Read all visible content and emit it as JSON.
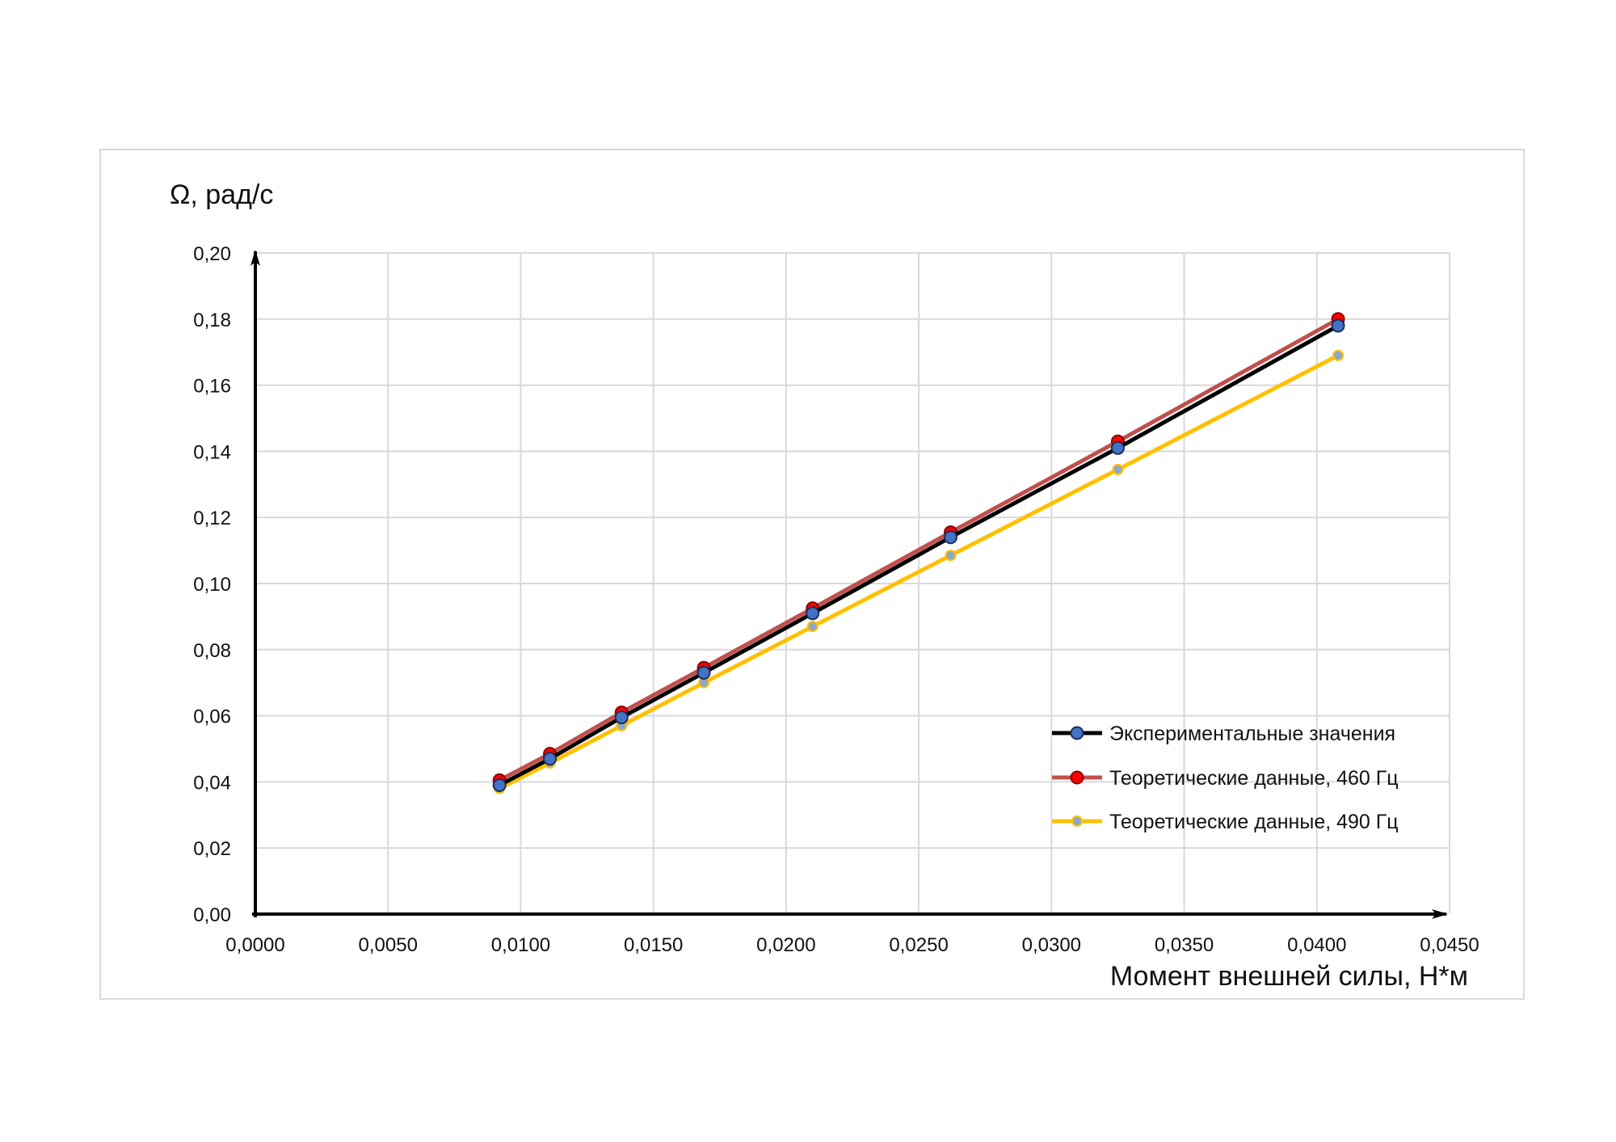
{
  "chart_data": {
    "type": "line",
    "title": "",
    "xlabel": "Момент внешней силы, Н*м",
    "ylabel": "Ω, рад/с",
    "xlim": [
      0,
      0.045
    ],
    "ylim": [
      0,
      0.2
    ],
    "x_ticks": [
      "0,0000",
      "0,0050",
      "0,0100",
      "0,0150",
      "0,0200",
      "0,0250",
      "0,0300",
      "0,0350",
      "0,0400",
      "0,0450"
    ],
    "y_ticks": [
      "0,00",
      "0,02",
      "0,04",
      "0,06",
      "0,08",
      "0,10",
      "0,12",
      "0,14",
      "0,16",
      "0,18",
      "0,20"
    ],
    "grid": true,
    "legend_position": "right",
    "x": [
      0.0092,
      0.0111,
      0.0138,
      0.0169,
      0.021,
      0.0262,
      0.0325,
      0.0408
    ],
    "series": [
      {
        "name": "Экспериментальные значения",
        "values": [
          0.039,
          0.047,
          0.0595,
          0.073,
          0.091,
          0.114,
          0.141,
          0.178
        ],
        "line_color": "#000000",
        "marker_fill": "#4472c4",
        "marker_stroke": "#1f2f5a"
      },
      {
        "name": "Теоретические данные, 460 Гц",
        "values": [
          0.0405,
          0.0485,
          0.061,
          0.0745,
          0.0925,
          0.1155,
          0.143,
          0.18
        ],
        "line_color": "#c0504d",
        "marker_fill": "#ff0000",
        "marker_stroke": "#8b0000"
      },
      {
        "name": "Теоретические данные, 490 Гц",
        "values": [
          0.038,
          0.0457,
          0.057,
          0.07,
          0.087,
          0.1085,
          0.1345,
          0.169
        ],
        "line_color": "#ffc000",
        "marker_fill": "#8fa8c8",
        "marker_stroke": "#ffc000"
      }
    ]
  }
}
